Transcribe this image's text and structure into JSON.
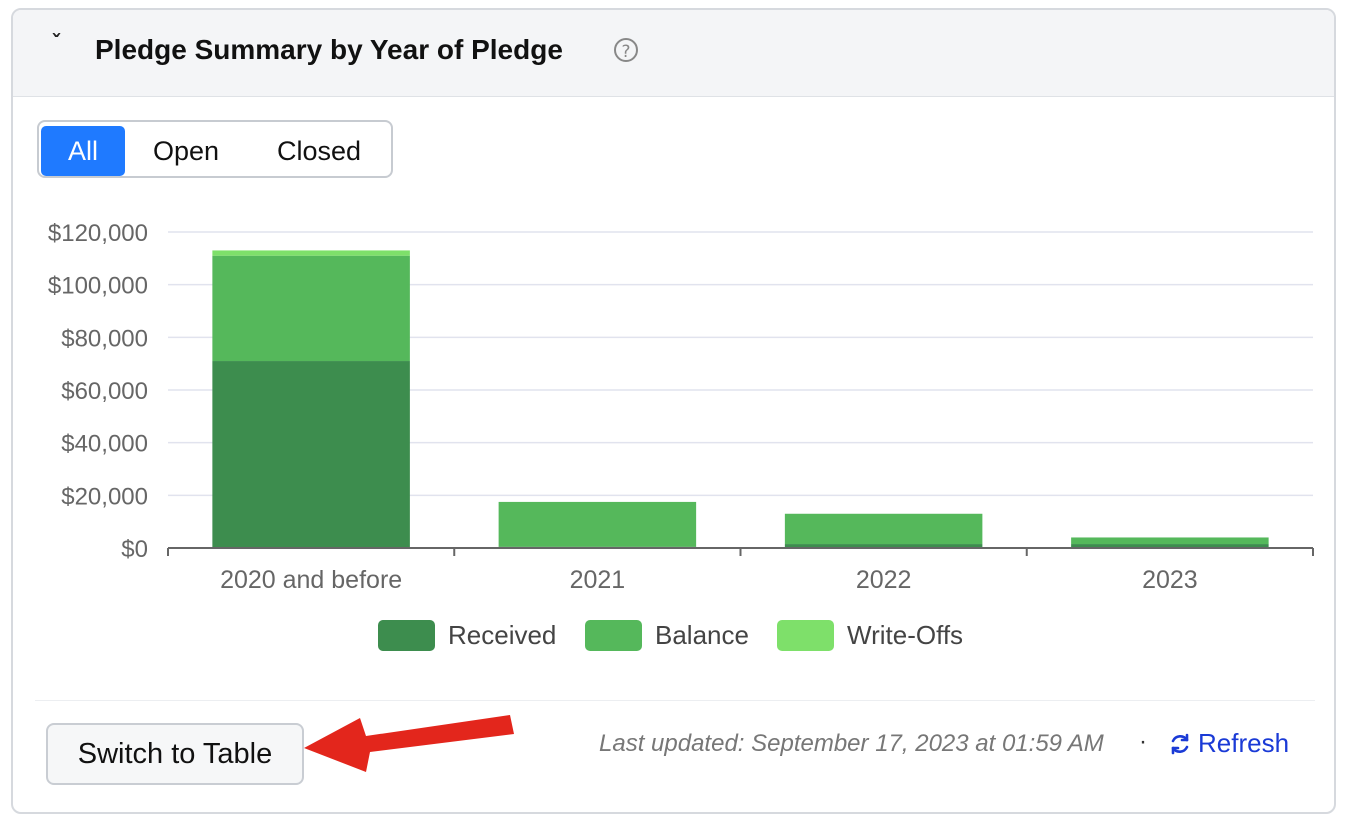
{
  "header": {
    "title": "Pledge Summary by Year of Pledge",
    "help_icon": "question-circle-icon",
    "chevron_icon": "chevron-down-icon"
  },
  "filters": {
    "options": [
      "All",
      "Open",
      "Closed"
    ],
    "selected": "All",
    "accent_color": "#1f7aff"
  },
  "chart_data": {
    "type": "bar",
    "stacked": true,
    "categories": [
      "2020 and before",
      "2021",
      "2022",
      "2023"
    ],
    "series": [
      {
        "name": "Received",
        "color": "#3d8d4e",
        "values": [
          71000,
          500,
          1500,
          1500
        ]
      },
      {
        "name": "Balance",
        "color": "#55b85b",
        "values": [
          40000,
          17000,
          11500,
          2500
        ]
      },
      {
        "name": "Write-Offs",
        "color": "#7ee06a",
        "values": [
          2000,
          0,
          0,
          0
        ]
      }
    ],
    "ylim": [
      0,
      120000
    ],
    "yticks": [
      "$0",
      "$20,000",
      "$40,000",
      "$60,000",
      "$80,000",
      "$100,000",
      "$120,000"
    ],
    "grid": true,
    "legend_position": "bottom"
  },
  "footer": {
    "switch_label": "Switch to Table",
    "last_updated": "Last updated: September 17, 2023 at 01:59 AM",
    "separator": "·",
    "refresh_label": "Refresh",
    "refresh_icon": "refresh-icon"
  }
}
